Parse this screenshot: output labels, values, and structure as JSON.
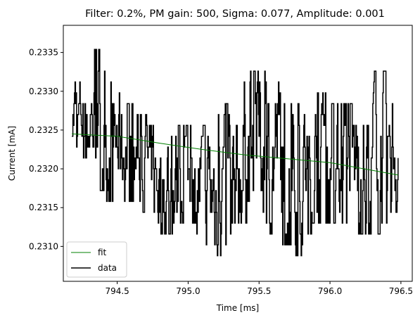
{
  "chart_data": {
    "type": "line",
    "title": "Filter: 0.2%, PM gain: 500, Sigma: 0.077, Amplitude: 0.001",
    "xlabel": "Time [ms]",
    "ylabel": "Current [mA]",
    "xlim": [
      794.12,
      796.58
    ],
    "ylim": [
      0.23055,
      0.23385
    ],
    "xticks": [
      794.5,
      795.0,
      795.5,
      796.0,
      796.5
    ],
    "xtick_labels": [
      "794.5",
      "795.0",
      "795.5",
      "796.0",
      "796.5"
    ],
    "yticks": [
      0.231,
      0.2315,
      0.232,
      0.2325,
      0.233,
      0.2335
    ],
    "ytick_labels": [
      "0.2310",
      "0.2315",
      "0.2320",
      "0.2325",
      "0.2330",
      "0.2335"
    ],
    "grid": false,
    "legend": {
      "position": "lower-left",
      "entries": [
        "fit",
        "data"
      ]
    },
    "series": [
      {
        "name": "fit",
        "color": "#008000",
        "style": "thin-line",
        "x": [
          794.18,
          794.5,
          794.8,
          795.1,
          795.4,
          795.7,
          796.0,
          796.3,
          796.48
        ],
        "y": [
          0.23245,
          0.23242,
          0.23233,
          0.23225,
          0.23218,
          0.23213,
          0.23208,
          0.23198,
          0.23192
        ]
      },
      {
        "name": "data",
        "color": "#000000",
        "style": "line",
        "x_start": 794.18,
        "x_end": 796.48,
        "levels": [
          0.23074,
          0.23088,
          0.23102,
          0.23116,
          0.2313,
          0.23144,
          0.23158,
          0.23172,
          0.23186,
          0.232,
          0.23214,
          0.23228,
          0.23242,
          0.23256,
          0.2327,
          0.23284,
          0.23298,
          0.23312,
          0.23326,
          0.2334,
          0.23354,
          0.23368
        ],
        "envelope": [
          {
            "x": 794.18,
            "low": 0.23235,
            "high": 0.23315
          },
          {
            "x": 794.28,
            "low": 0.23205,
            "high": 0.23315
          },
          {
            "x": 794.36,
            "low": 0.2317,
            "high": 0.23368
          },
          {
            "x": 794.45,
            "low": 0.2315,
            "high": 0.23315
          },
          {
            "x": 794.6,
            "low": 0.23158,
            "high": 0.23288
          },
          {
            "x": 794.8,
            "low": 0.23102,
            "high": 0.2326
          },
          {
            "x": 795.0,
            "low": 0.2313,
            "high": 0.2326
          },
          {
            "x": 795.18,
            "low": 0.23074,
            "high": 0.2326
          },
          {
            "x": 795.35,
            "low": 0.23116,
            "high": 0.23312
          },
          {
            "x": 795.5,
            "low": 0.2313,
            "high": 0.2334
          },
          {
            "x": 795.65,
            "low": 0.23102,
            "high": 0.23312
          },
          {
            "x": 795.78,
            "low": 0.23074,
            "high": 0.23284
          },
          {
            "x": 795.9,
            "low": 0.2313,
            "high": 0.23312
          },
          {
            "x": 796.05,
            "low": 0.2313,
            "high": 0.23284
          },
          {
            "x": 796.2,
            "low": 0.23102,
            "high": 0.23298
          },
          {
            "x": 796.35,
            "low": 0.23116,
            "high": 0.2334
          },
          {
            "x": 796.48,
            "low": 0.23144,
            "high": 0.23312
          }
        ]
      }
    ]
  }
}
